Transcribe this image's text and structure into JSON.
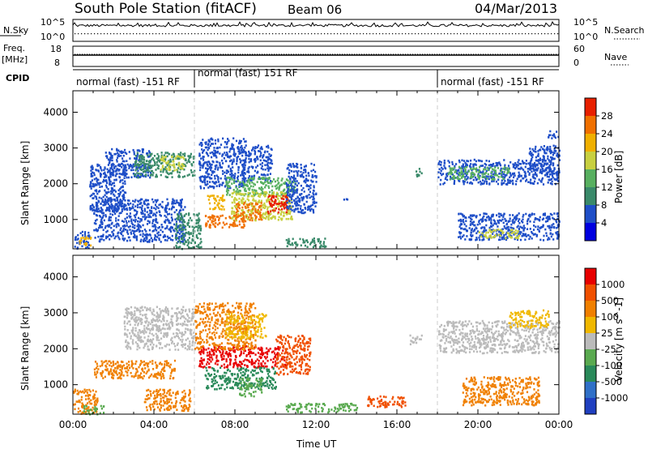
{
  "header": {
    "station": "South Pole Station (fitACF)",
    "beam": "Beam 06",
    "date": "04/Mar/2013"
  },
  "top_panels": {
    "nsky_label": "N.Sky",
    "nsky_ticks": [
      "10^5",
      "10^0"
    ],
    "nsearch_label": "N.Search",
    "nsearch_ticks": [
      "10^5",
      "10^0"
    ],
    "freq_label_1": "Freq.",
    "freq_label_2": "[MHz]",
    "freq_ticks": [
      "18",
      "8"
    ],
    "nave_label": "Nave",
    "nave_ticks": [
      "60",
      "0"
    ],
    "cpid_label": "CPID",
    "cpid_segments": [
      {
        "label": "normal (fast) -151 RF",
        "start_h": 0,
        "end_h": 6
      },
      {
        "label": "normal (fast) 151 RF",
        "start_h": 6,
        "end_h": 18
      },
      {
        "label": "normal (fast) -151 RF",
        "start_h": 18,
        "end_h": 24
      }
    ]
  },
  "chart_data": [
    {
      "type": "heatmap",
      "title": "",
      "ylabel": "Slant Range [km]",
      "xlabel": "",
      "xlim": [
        0,
        24
      ],
      "ylim": [
        180,
        4600
      ],
      "yticks": [
        "1000",
        "2000",
        "3000",
        "4000"
      ],
      "colorbar": {
        "label": "Power [dB]",
        "ticks": [
          "4",
          "8",
          "12",
          "16",
          "20",
          "24",
          "28"
        ],
        "colors": [
          "#0000e0",
          "#1f4fc8",
          "#3a8a6a",
          "#58b060",
          "#c8d040",
          "#f0b000",
          "#f07000",
          "#e82000"
        ]
      },
      "blobs": [
        {
          "t0": 0.0,
          "t1": 0.8,
          "r0": 200,
          "r1": 700,
          "lvl": 1
        },
        {
          "t0": 0.3,
          "t1": 0.9,
          "r0": 300,
          "r1": 560,
          "lvl": 5
        },
        {
          "t0": 0.8,
          "t1": 2.6,
          "r0": 1250,
          "r1": 2600,
          "lvl": 1
        },
        {
          "t0": 1.5,
          "t1": 3.8,
          "r0": 2200,
          "r1": 3000,
          "lvl": 1
        },
        {
          "t0": 3.0,
          "t1": 6.0,
          "r0": 2200,
          "r1": 2900,
          "lvl": 2
        },
        {
          "t0": 4.3,
          "t1": 5.5,
          "r0": 2400,
          "r1": 2800,
          "lvl": 4
        },
        {
          "t0": 1.0,
          "t1": 5.5,
          "r0": 400,
          "r1": 1600,
          "lvl": 1
        },
        {
          "t0": 5.0,
          "t1": 6.3,
          "r0": 200,
          "r1": 1200,
          "lvl": 2
        },
        {
          "t0": 6.2,
          "t1": 8.5,
          "r0": 1900,
          "r1": 3300,
          "lvl": 1
        },
        {
          "t0": 8.3,
          "t1": 9.8,
          "r0": 2100,
          "r1": 3100,
          "lvl": 1
        },
        {
          "t0": 7.5,
          "t1": 11.0,
          "r0": 1700,
          "r1": 2200,
          "lvl": 3
        },
        {
          "t0": 7.8,
          "t1": 10.8,
          "r0": 1000,
          "r1": 1800,
          "lvl": 4
        },
        {
          "t0": 9.5,
          "t1": 10.6,
          "r0": 1200,
          "r1": 1700,
          "lvl": 7
        },
        {
          "t0": 8.0,
          "t1": 9.3,
          "r0": 1000,
          "r1": 1500,
          "lvl": 6
        },
        {
          "t0": 6.5,
          "t1": 8.5,
          "r0": 800,
          "r1": 1150,
          "lvl": 6
        },
        {
          "t0": 6.6,
          "t1": 7.5,
          "r0": 1300,
          "r1": 1700,
          "lvl": 5
        },
        {
          "t0": 10.5,
          "t1": 12.0,
          "r0": 1200,
          "r1": 2600,
          "lvl": 1
        },
        {
          "t0": 10.5,
          "t1": 12.5,
          "r0": 250,
          "r1": 500,
          "lvl": 2
        },
        {
          "t0": 13.3,
          "t1": 13.6,
          "r0": 1550,
          "r1": 1650,
          "lvl": 1
        },
        {
          "t0": 16.9,
          "t1": 17.3,
          "r0": 2200,
          "r1": 2450,
          "lvl": 2
        },
        {
          "t0": 18.0,
          "t1": 24.0,
          "r0": 2000,
          "r1": 2700,
          "lvl": 1
        },
        {
          "t0": 18.5,
          "t1": 21.5,
          "r0": 2150,
          "r1": 2500,
          "lvl": 3
        },
        {
          "t0": 19.0,
          "t1": 24.0,
          "r0": 450,
          "r1": 1200,
          "lvl": 1
        },
        {
          "t0": 20.0,
          "t1": 22.0,
          "r0": 500,
          "r1": 750,
          "lvl": 4
        },
        {
          "t0": 22.5,
          "t1": 24.0,
          "r0": 2300,
          "r1": 3100,
          "lvl": 1
        },
        {
          "t0": 23.4,
          "t1": 24.0,
          "r0": 3300,
          "r1": 3500,
          "lvl": 1
        }
      ]
    },
    {
      "type": "heatmap",
      "title": "",
      "ylabel": "Slant Range [km]",
      "xlabel": "Time UT",
      "xlim": [
        0,
        24
      ],
      "ylim": [
        180,
        4600
      ],
      "xticks": [
        "00:00",
        "04:00",
        "08:00",
        "12:00",
        "16:00",
        "20:00",
        "00:00"
      ],
      "yticks": [
        "1000",
        "2000",
        "3000",
        "4000"
      ],
      "colorbar": {
        "label": "Velocity [m s^-1]",
        "ticks": [
          "1000",
          "500",
          "100",
          "25",
          "-25",
          "-100",
          "-500",
          "-1000"
        ],
        "colors": [
          "#2040c0",
          "#3070c8",
          "#2a8a5a",
          "#5aaa50",
          "#bbbbbb",
          "#f0b800",
          "#f08000",
          "#f05000",
          "#e80000"
        ]
      },
      "blobs": [
        {
          "t0": 0.0,
          "t1": 1.2,
          "r0": 200,
          "r1": 900,
          "lvl": 6
        },
        {
          "t0": 0.5,
          "t1": 1.5,
          "r0": 200,
          "r1": 450,
          "lvl": 3
        },
        {
          "t0": 2.5,
          "t1": 6.0,
          "r0": 2000,
          "r1": 3200,
          "lvl": 4
        },
        {
          "t0": 1.0,
          "t1": 5.0,
          "r0": 1200,
          "r1": 1700,
          "lvl": 6
        },
        {
          "t0": 3.5,
          "t1": 5.8,
          "r0": 300,
          "r1": 900,
          "lvl": 6
        },
        {
          "t0": 6.2,
          "t1": 10.5,
          "r0": 1500,
          "r1": 2100,
          "lvl": 8
        },
        {
          "t0": 6.5,
          "t1": 10.0,
          "r0": 900,
          "r1": 1500,
          "lvl": 2
        },
        {
          "t0": 8.2,
          "t1": 9.3,
          "r0": 700,
          "r1": 1200,
          "lvl": 3
        },
        {
          "t0": 10.0,
          "t1": 11.7,
          "r0": 1300,
          "r1": 2400,
          "lvl": 7
        },
        {
          "t0": 6.0,
          "t1": 9.0,
          "r0": 2000,
          "r1": 3300,
          "lvl": 6
        },
        {
          "t0": 7.5,
          "t1": 9.5,
          "r0": 2300,
          "r1": 3000,
          "lvl": 5
        },
        {
          "t0": 10.5,
          "t1": 14.0,
          "r0": 250,
          "r1": 500,
          "lvl": 3
        },
        {
          "t0": 14.5,
          "t1": 16.5,
          "r0": 400,
          "r1": 700,
          "lvl": 7
        },
        {
          "t0": 16.6,
          "t1": 17.2,
          "r0": 2150,
          "r1": 2400,
          "lvl": 4
        },
        {
          "t0": 18.0,
          "t1": 24.0,
          "r0": 1900,
          "r1": 2800,
          "lvl": 4
        },
        {
          "t0": 19.2,
          "t1": 23.0,
          "r0": 450,
          "r1": 1250,
          "lvl": 6
        },
        {
          "t0": 21.5,
          "t1": 23.5,
          "r0": 2600,
          "r1": 3100,
          "lvl": 5
        }
      ]
    }
  ]
}
